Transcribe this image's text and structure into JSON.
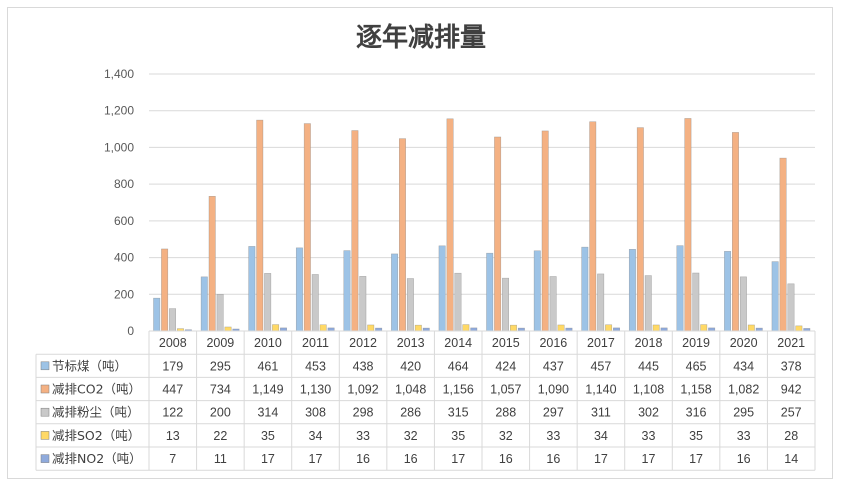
{
  "chart_data": {
    "type": "bar",
    "title": "逐年减排量",
    "categories": [
      "2008",
      "2009",
      "2010",
      "2011",
      "2012",
      "2013",
      "2014",
      "2015",
      "2016",
      "2017",
      "2018",
      "2019",
      "2020",
      "2021"
    ],
    "ylim": [
      0,
      1400
    ],
    "yticks": [
      "0",
      "200",
      "400",
      "600",
      "800",
      "1,000",
      "1,200",
      "1,400"
    ],
    "legend_position": "data-table",
    "grid": true,
    "series": [
      {
        "name": "节标煤（吨）",
        "color": "#9dc3e6",
        "values": [
          179,
          295,
          461,
          453,
          438,
          420,
          464,
          424,
          437,
          457,
          445,
          465,
          434,
          378
        ],
        "labels": [
          "179",
          "295",
          "461",
          "453",
          "438",
          "420",
          "464",
          "424",
          "437",
          "457",
          "445",
          "465",
          "434",
          "378"
        ]
      },
      {
        "name": "减排CO2（吨）",
        "color": "#f4b183",
        "values": [
          447,
          734,
          1149,
          1130,
          1092,
          1048,
          1156,
          1057,
          1090,
          1140,
          1108,
          1158,
          1082,
          942
        ],
        "labels": [
          "447",
          "734",
          "1,149",
          "1,130",
          "1,092",
          "1,048",
          "1,156",
          "1,057",
          "1,090",
          "1,140",
          "1,108",
          "1,158",
          "1,082",
          "942"
        ]
      },
      {
        "name": "减排粉尘（吨）",
        "color": "#c9c9c9",
        "values": [
          122,
          200,
          314,
          308,
          298,
          286,
          315,
          288,
          297,
          311,
          302,
          316,
          295,
          257
        ],
        "labels": [
          "122",
          "200",
          "314",
          "308",
          "298",
          "286",
          "315",
          "288",
          "297",
          "311",
          "302",
          "316",
          "295",
          "257"
        ]
      },
      {
        "name": "减排SO2（吨）",
        "color": "#ffd966",
        "values": [
          13,
          22,
          35,
          34,
          33,
          32,
          35,
          32,
          33,
          34,
          33,
          35,
          33,
          28
        ],
        "labels": [
          "13",
          "22",
          "35",
          "34",
          "33",
          "32",
          "35",
          "32",
          "33",
          "34",
          "33",
          "35",
          "33",
          "28"
        ]
      },
      {
        "name": "减排NO2（吨）",
        "color": "#8faadc",
        "values": [
          7,
          11,
          17,
          17,
          16,
          16,
          17,
          16,
          16,
          17,
          17,
          17,
          16,
          14
        ],
        "labels": [
          "7",
          "11",
          "17",
          "17",
          "16",
          "16",
          "17",
          "16",
          "16",
          "17",
          "17",
          "17",
          "16",
          "14"
        ]
      }
    ]
  }
}
